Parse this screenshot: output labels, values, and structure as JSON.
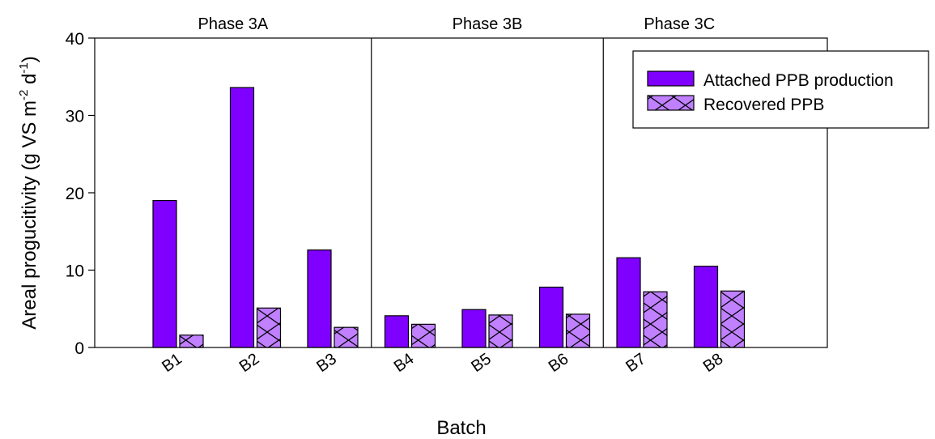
{
  "chart_data": {
    "type": "bar",
    "xlabel": "Batch",
    "ylabel": "Areal progucitivity (g VS m",
    "ylabel_sup1": "-2",
    "ylabel_mid": " d",
    "ylabel_sup2": "-1",
    "ylabel_end": ")",
    "categories": [
      "B1",
      "B2",
      "B3",
      "B4",
      "B5",
      "B6",
      "B7",
      "B8"
    ],
    "ylim": [
      0,
      40
    ],
    "yticks": [
      0,
      10,
      20,
      30,
      40
    ],
    "grid": false,
    "legend_position": "top-right",
    "series": [
      {
        "name": "Attached PPB production",
        "values": [
          19.0,
          33.6,
          12.6,
          4.1,
          4.9,
          7.8,
          11.6,
          10.5
        ],
        "color": "#8000ff",
        "pattern": "solid"
      },
      {
        "name": "Recovered PPB",
        "values": [
          1.6,
          5.1,
          2.6,
          3.0,
          4.2,
          4.3,
          7.2,
          7.3
        ],
        "color": "#c080ff",
        "pattern": "crosshatch"
      }
    ],
    "phases": [
      {
        "label": "Phase 3A",
        "categories": [
          "B1",
          "B2",
          "B3"
        ]
      },
      {
        "label": "Phase 3B",
        "categories": [
          "B4",
          "B5",
          "B6"
        ]
      },
      {
        "label": "Phase 3C",
        "categories": [
          "B7",
          "B8"
        ]
      }
    ]
  }
}
